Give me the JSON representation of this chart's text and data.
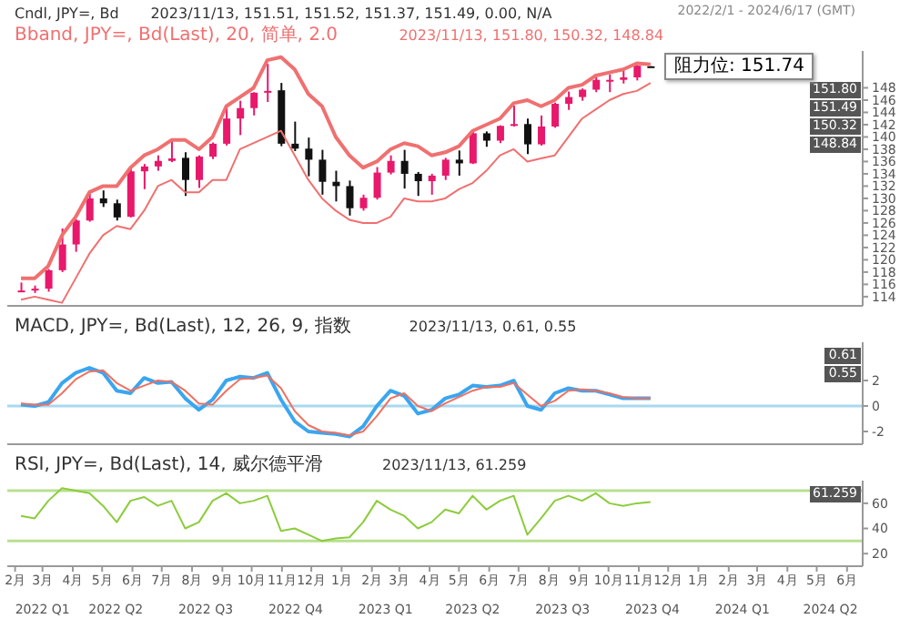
{
  "chart_data": [
    {
      "type": "candlestick",
      "title": "2022/2/1 - 2024/6/17 (GMT)",
      "x": [
        "2022-02-07",
        "2022-02-21",
        "2022-03-07",
        "2022-03-21",
        "2022-04-04",
        "2022-04-18",
        "2022-05-02",
        "2022-05-16",
        "2022-05-30",
        "2022-06-13",
        "2022-06-27",
        "2022-07-11",
        "2022-07-25",
        "2022-08-08",
        "2022-08-22",
        "2022-09-05",
        "2022-09-19",
        "2022-10-03",
        "2022-10-17",
        "2022-10-31",
        "2022-11-14",
        "2022-11-28",
        "2022-12-12",
        "2022-12-26",
        "2023-01-09",
        "2023-01-23",
        "2023-02-06",
        "2023-02-20",
        "2023-03-06",
        "2023-03-20",
        "2023-04-03",
        "2023-04-17",
        "2023-05-01",
        "2023-05-15",
        "2023-05-29",
        "2023-06-12",
        "2023-06-26",
        "2023-07-10",
        "2023-07-24",
        "2023-08-07",
        "2023-08-21",
        "2023-09-04",
        "2023-09-18",
        "2023-10-02",
        "2023-10-16",
        "2023-10-30",
        "2023-11-13"
      ],
      "ohlc": [
        [
          115.0,
          116.3,
          114.8,
          115.0
        ],
        [
          115.0,
          115.8,
          114.6,
          115.3
        ],
        [
          115.3,
          118.5,
          114.8,
          118.3
        ],
        [
          118.3,
          125.1,
          118.0,
          122.5
        ],
        [
          122.5,
          126.6,
          121.3,
          126.4
        ],
        [
          126.4,
          131.2,
          126.2,
          130.0
        ],
        [
          130.0,
          131.3,
          128.6,
          129.2
        ],
        [
          129.2,
          129.8,
          126.4,
          126.9
        ],
        [
          127.0,
          135.2,
          126.9,
          134.4
        ],
        [
          134.4,
          135.6,
          131.5,
          135.2
        ],
        [
          135.2,
          137.0,
          134.5,
          136.1
        ],
        [
          136.1,
          139.4,
          135.9,
          136.5
        ],
        [
          136.6,
          137.5,
          130.4,
          133.0
        ],
        [
          133.0,
          137.0,
          131.7,
          136.8
        ],
        [
          136.8,
          139.1,
          136.4,
          138.9
        ],
        [
          138.9,
          145.0,
          138.6,
          143.0
        ],
        [
          143.0,
          145.9,
          140.3,
          144.7
        ],
        [
          144.7,
          147.3,
          143.5,
          147.2
        ],
        [
          147.2,
          151.9,
          145.7,
          147.5
        ],
        [
          147.6,
          148.8,
          138.5,
          138.9
        ],
        [
          138.9,
          142.5,
          137.7,
          138.1
        ],
        [
          138.1,
          139.9,
          133.6,
          136.3
        ],
        [
          136.3,
          137.9,
          130.6,
          132.7
        ],
        [
          132.7,
          134.5,
          129.5,
          132.0
        ],
        [
          132.0,
          132.9,
          127.2,
          128.4
        ],
        [
          128.4,
          130.6,
          128.0,
          130.1
        ],
        [
          130.1,
          135.1,
          129.8,
          134.2
        ],
        [
          134.2,
          137.0,
          133.9,
          136.1
        ],
        [
          136.1,
          137.9,
          131.6,
          134.0
        ],
        [
          134.0,
          134.3,
          130.4,
          132.8
        ],
        [
          132.8,
          134.0,
          130.6,
          133.7
        ],
        [
          133.7,
          136.6,
          133.0,
          136.3
        ],
        [
          136.3,
          137.8,
          133.7,
          135.7
        ],
        [
          135.7,
          140.9,
          135.6,
          140.6
        ],
        [
          140.6,
          140.9,
          138.4,
          139.4
        ],
        [
          139.4,
          141.9,
          139.0,
          141.8
        ],
        [
          141.8,
          145.1,
          141.7,
          142.1
        ],
        [
          142.1,
          143.0,
          137.2,
          138.8
        ],
        [
          138.8,
          143.5,
          138.6,
          141.7
        ],
        [
          141.7,
          145.6,
          141.5,
          145.4
        ],
        [
          145.4,
          147.4,
          144.4,
          146.5
        ],
        [
          146.5,
          147.9,
          145.9,
          147.7
        ],
        [
          147.7,
          149.7,
          147.3,
          149.3
        ],
        [
          149.3,
          150.2,
          147.3,
          149.3
        ],
        [
          149.3,
          150.8,
          148.7,
          149.7
        ],
        [
          149.7,
          151.7,
          149.2,
          151.6
        ],
        [
          151.51,
          151.52,
          151.37,
          151.49
        ]
      ],
      "colors": [
        "#e8186a",
        "#e8186a",
        "#e8186a",
        "#e8186a",
        "#e8186a",
        "#e8186a",
        "#111111",
        "#111111",
        "#e8186a",
        "#e8186a",
        "#e8186a",
        "#e8186a",
        "#111111",
        "#e8186a",
        "#e8186a",
        "#e8186a",
        "#e8186a",
        "#e8186a",
        "#e8186a",
        "#111111",
        "#111111",
        "#111111",
        "#111111",
        "#111111",
        "#111111",
        "#e8186a",
        "#e8186a",
        "#e8186a",
        "#111111",
        "#111111",
        "#e8186a",
        "#e8186a",
        "#111111",
        "#e8186a",
        "#111111",
        "#e8186a",
        "#e8186a",
        "#111111",
        "#e8186a",
        "#e8186a",
        "#e8186a",
        "#e8186a",
        "#e8186a",
        "#e8186a",
        "#e8186a",
        "#e8186a",
        "#111111"
      ],
      "series": [
        {
          "type": "line",
          "color": "#f07070",
          "values": [
            117,
            117,
            119,
            124,
            127,
            131,
            132,
            132,
            135,
            137,
            138,
            139.5,
            139.5,
            138,
            140,
            145,
            146.5,
            148,
            152.5,
            153,
            151,
            147,
            145,
            140,
            137,
            135,
            136,
            138,
            139,
            138.5,
            137,
            137.5,
            138.5,
            141,
            142,
            143,
            145.5,
            146,
            145,
            146,
            148,
            148.5,
            150,
            150.5,
            151,
            152,
            151.8
          ]
        },
        {
          "type": "line",
          "color": "#f07070",
          "values": [
            113.5,
            114,
            113.5,
            113,
            117,
            121,
            124,
            125.5,
            125,
            128,
            132,
            133,
            131,
            131,
            133,
            133,
            138,
            139,
            140,
            141,
            137,
            133,
            130,
            128,
            126.5,
            126,
            126,
            127,
            130,
            129.5,
            129.5,
            130,
            131.5,
            132.5,
            134.5,
            137,
            138,
            136,
            136.5,
            137,
            140,
            143,
            144.5,
            146,
            147,
            147.5,
            148.8
          ]
        }
      ],
      "xlim": [
        "2022-01-24",
        "2024-06-17"
      ],
      "ylim": [
        112.5,
        154
      ],
      "yticks": [
        114,
        116,
        118,
        120,
        122,
        124,
        126,
        128,
        130,
        132,
        134,
        136,
        138,
        140,
        142,
        144,
        146,
        148
      ],
      "tick_labels": "y",
      "annotations": [
        "Cndl, JPY=, Bd",
        "2023/11/13, 151.51, 151.52, 151.37, 151.49, 0.00, N/A",
        "Bband, JPY=, Bd(Last), 20, 简单, 2.0",
        "2023/11/13, 151.80, 150.32, 148.84",
        {
          "text": "阻力位: 151.74",
          "x": "2023-11-13",
          "y": 151.74
        },
        "151.80",
        "151.49",
        "150.32",
        "148.84"
      ]
    },
    {
      "type": "line",
      "x": [
        "2022-02-07",
        "2022-02-21",
        "2022-03-07",
        "2022-03-21",
        "2022-04-04",
        "2022-04-18",
        "2022-05-02",
        "2022-05-16",
        "2022-05-30",
        "2022-06-13",
        "2022-06-27",
        "2022-07-11",
        "2022-07-25",
        "2022-08-08",
        "2022-08-22",
        "2022-09-05",
        "2022-09-19",
        "2022-10-03",
        "2022-10-17",
        "2022-10-31",
        "2022-11-14",
        "2022-11-28",
        "2022-12-12",
        "2022-12-26",
        "2023-01-09",
        "2023-01-23",
        "2023-02-06",
        "2023-02-20",
        "2023-03-06",
        "2023-03-20",
        "2023-04-03",
        "2023-04-17",
        "2023-05-01",
        "2023-05-15",
        "2023-05-29",
        "2023-06-12",
        "2023-06-26",
        "2023-07-10",
        "2023-07-24",
        "2023-08-07",
        "2023-08-21",
        "2023-09-04",
        "2023-09-18",
        "2023-10-02",
        "2023-10-16",
        "2023-10-30",
        "2023-11-13"
      ],
      "series": [
        {
          "color": "#3aa6f0",
          "values": [
            0.1,
            0.0,
            0.3,
            1.8,
            2.6,
            3.0,
            2.6,
            1.2,
            1.0,
            2.2,
            1.8,
            1.9,
            0.6,
            -0.3,
            0.5,
            2.0,
            2.3,
            2.2,
            2.6,
            0.5,
            -1.2,
            -2.0,
            -2.1,
            -2.2,
            -2.4,
            -1.6,
            0.0,
            1.2,
            0.8,
            -0.6,
            -0.3,
            0.6,
            0.9,
            1.6,
            1.5,
            1.6,
            2.0,
            0.0,
            -0.3,
            1.0,
            1.4,
            1.2,
            1.2,
            0.9,
            0.6,
            0.6,
            0.6
          ]
        },
        {
          "color": "#f07060",
          "values": [
            0.2,
            0.1,
            0.1,
            1.0,
            2.1,
            2.7,
            2.8,
            1.8,
            1.2,
            1.6,
            2.0,
            1.9,
            1.2,
            0.2,
            0.1,
            1.2,
            2.1,
            2.2,
            2.4,
            1.4,
            -0.4,
            -1.5,
            -2.0,
            -2.1,
            -2.3,
            -2.0,
            -0.8,
            0.6,
            1.0,
            0.0,
            -0.4,
            0.2,
            0.7,
            1.2,
            1.5,
            1.5,
            1.8,
            0.9,
            0.0,
            0.4,
            1.2,
            1.3,
            1.2,
            1.0,
            0.7,
            0.6,
            0.6
          ]
        }
      ],
      "xlim": [
        "2022-01-24",
        "2024-06-17"
      ],
      "ylim": [
        -3,
        5
      ],
      "yticks": [
        -2,
        0,
        2
      ],
      "tick_labels": "y",
      "ref_lines": [
        {
          "axis": "y",
          "value": 0,
          "color": "#a8d8f0"
        }
      ],
      "annotations": [
        "MACD, JPY=, Bd(Last), 12, 26, 9, 指数",
        "2023/11/13, 0.61, 0.55",
        "0.61",
        "0.55"
      ]
    },
    {
      "type": "line",
      "x": [
        "2022-02-07",
        "2022-02-21",
        "2022-03-07",
        "2022-03-21",
        "2022-04-04",
        "2022-04-18",
        "2022-05-02",
        "2022-05-16",
        "2022-05-30",
        "2022-06-13",
        "2022-06-27",
        "2022-07-11",
        "2022-07-25",
        "2022-08-08",
        "2022-08-22",
        "2022-09-05",
        "2022-09-19",
        "2022-10-03",
        "2022-10-17",
        "2022-10-31",
        "2022-11-14",
        "2022-11-28",
        "2022-12-12",
        "2022-12-26",
        "2023-01-09",
        "2023-01-23",
        "2023-02-06",
        "2023-02-20",
        "2023-03-06",
        "2023-03-20",
        "2023-04-03",
        "2023-04-17",
        "2023-05-01",
        "2023-05-15",
        "2023-05-29",
        "2023-06-12",
        "2023-06-26",
        "2023-07-10",
        "2023-07-24",
        "2023-08-07",
        "2023-08-21",
        "2023-09-04",
        "2023-09-18",
        "2023-10-02",
        "2023-10-16",
        "2023-10-30",
        "2023-11-13"
      ],
      "series": [
        {
          "color": "#8ccc3c",
          "values": [
            50,
            48,
            62,
            72,
            70,
            68,
            58,
            45,
            62,
            65,
            58,
            62,
            40,
            45,
            62,
            68,
            60,
            62,
            66,
            38,
            40,
            35,
            30,
            32,
            33,
            45,
            62,
            55,
            50,
            40,
            45,
            55,
            52,
            66,
            55,
            62,
            66,
            35,
            48,
            62,
            66,
            62,
            68,
            60,
            58,
            60,
            61
          ]
        }
      ],
      "xlim": [
        "2022-01-24",
        "2024-06-17"
      ],
      "ylim": [
        10,
        78
      ],
      "yticks": [
        20,
        40,
        60
      ],
      "ref_lines": [
        {
          "axis": "y",
          "value": 70,
          "color": "#b8e090"
        },
        {
          "axis": "y",
          "value": 30,
          "color": "#b8e090"
        }
      ],
      "xticks": [
        {
          "value": "2022-02-01",
          "label": "2月"
        },
        {
          "value": "2022-03-01",
          "label": "3月"
        },
        {
          "value": "2022-04-01",
          "label": "4月"
        },
        {
          "value": "2022-05-01",
          "label": "5月"
        },
        {
          "value": "2022-06-01",
          "label": "6月"
        },
        {
          "value": "2022-07-01",
          "label": "7月"
        },
        {
          "value": "2022-08-01",
          "label": "8月"
        },
        {
          "value": "2022-09-01",
          "label": "9月"
        },
        {
          "value": "2022-10-01",
          "label": "10月"
        },
        {
          "value": "2022-11-01",
          "label": "11月"
        },
        {
          "value": "2022-12-01",
          "label": "12月"
        },
        {
          "value": "2023-01-01",
          "label": "1月"
        },
        {
          "value": "2023-02-01",
          "label": "2月"
        },
        {
          "value": "2023-03-01",
          "label": "3月"
        },
        {
          "value": "2023-04-01",
          "label": "4月"
        },
        {
          "value": "2023-05-01",
          "label": "5月"
        },
        {
          "value": "2023-06-01",
          "label": "6月"
        },
        {
          "value": "2023-07-01",
          "label": "7月"
        },
        {
          "value": "2023-08-01",
          "label": "8月"
        },
        {
          "value": "2023-09-01",
          "label": "9月"
        },
        {
          "value": "2023-10-01",
          "label": "10月"
        },
        {
          "value": "2023-11-01",
          "label": "11月"
        },
        {
          "value": "2023-12-01",
          "label": "12月"
        },
        {
          "value": "2024-01-01",
          "label": "1月"
        },
        {
          "value": "2024-02-01",
          "label": "2月"
        },
        {
          "value": "2024-03-01",
          "label": "3月"
        },
        {
          "value": "2024-04-01",
          "label": "4月"
        },
        {
          "value": "2024-05-01",
          "label": "5月"
        },
        {
          "value": "2024-06-01",
          "label": "6月"
        }
      ],
      "x2lim": [
        "2022-01-24",
        "2024-06-17"
      ],
      "x2ticks": [
        {
          "value": "2022-03-01",
          "label": "2022 Q1"
        },
        {
          "value": "2022-05-15",
          "label": "2022 Q2"
        },
        {
          "value": "2022-08-15",
          "label": "2022 Q3"
        },
        {
          "value": "2022-11-15",
          "label": "2022 Q4"
        },
        {
          "value": "2023-02-15",
          "label": "2023 Q1"
        },
        {
          "value": "2023-05-15",
          "label": "2023 Q2"
        },
        {
          "value": "2023-08-15",
          "label": "2023 Q3"
        },
        {
          "value": "2023-11-15",
          "label": "2023 Q4"
        },
        {
          "value": "2024-02-15",
          "label": "2024 Q1"
        },
        {
          "value": "2024-05-15",
          "label": "2024 Q2"
        }
      ],
      "annotations": [
        "RSI, JPY=, Bd(Last), 14, 威尔德平滑",
        "2023/11/13, 61.259",
        "61.259"
      ]
    }
  ]
}
